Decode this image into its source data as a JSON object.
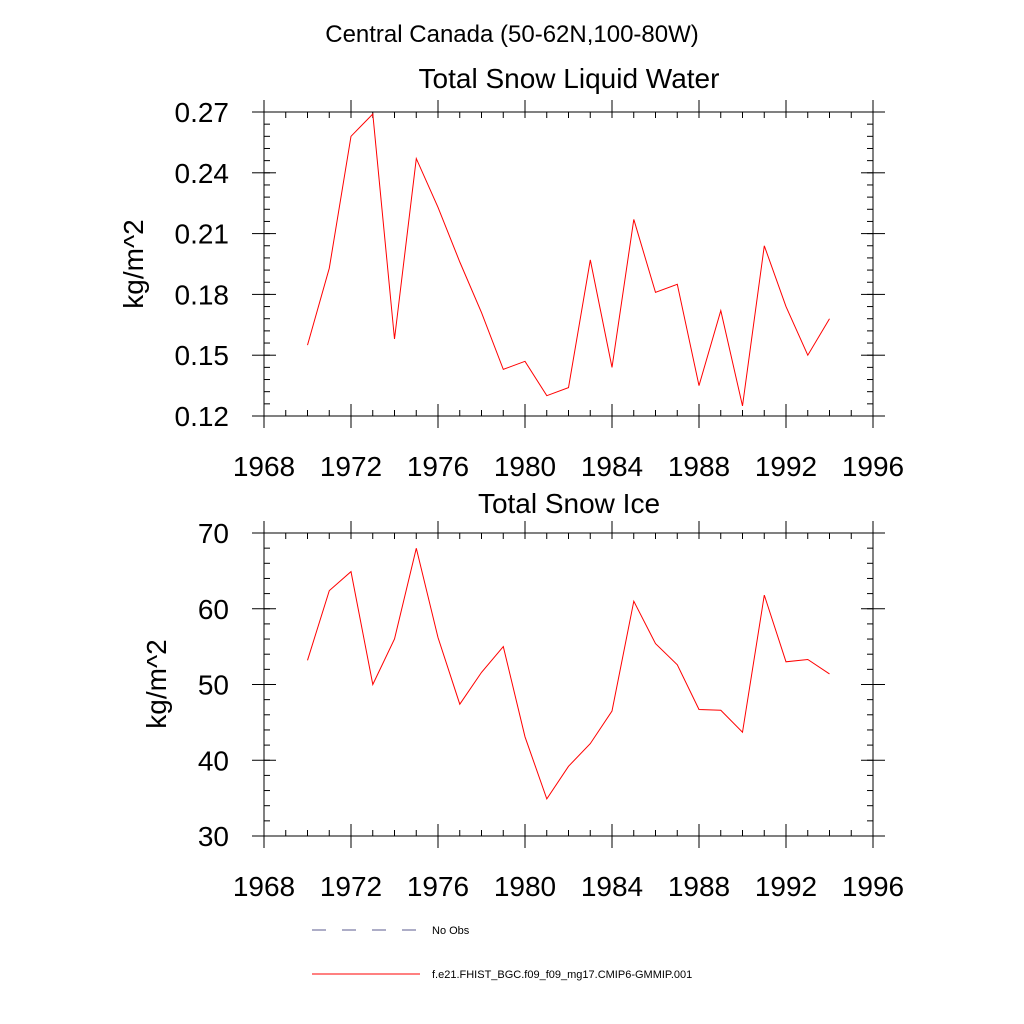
{
  "figure_title": "Central Canada (50-62N,100-80W)",
  "colors": {
    "model_line": "#ff0000",
    "obs_line": "#5b5b8f",
    "axis": "#000000"
  },
  "chart_data": [
    {
      "type": "line",
      "title": "Total Snow Liquid Water",
      "xlabel": "",
      "ylabel": "kg/m^2",
      "xlim": [
        1968,
        1996
      ],
      "ylim": [
        0.12,
        0.27
      ],
      "x_major_ticks": [
        1968,
        1972,
        1976,
        1980,
        1984,
        1988,
        1992,
        1996
      ],
      "x_tick_labels": [
        "1968",
        "1972",
        "1976",
        "1980",
        "1984",
        "1988",
        "1992",
        "1996"
      ],
      "y_major_ticks": [
        0.12,
        0.15,
        0.18,
        0.21,
        0.24,
        0.27
      ],
      "y_tick_labels": [
        "0.12",
        "0.15",
        "0.18",
        "0.21",
        "0.24",
        "0.27"
      ],
      "y_minor_step": 0.006,
      "x_minor_step": 1,
      "grid": false,
      "series": [
        {
          "name": "f.e21.FHIST_BGC.f09_f09_mg17.CMIP6-GMMIP.001",
          "color": "#ff0000",
          "x": [
            1970,
            1971,
            1972,
            1973,
            1974,
            1975,
            1976,
            1977,
            1978,
            1979,
            1980,
            1981,
            1982,
            1983,
            1984,
            1985,
            1986,
            1987,
            1988,
            1989,
            1990,
            1991,
            1992,
            1993,
            1994
          ],
          "values": [
            0.155,
            0.193,
            0.258,
            0.269,
            0.158,
            0.247,
            0.223,
            0.196,
            0.171,
            0.143,
            0.147,
            0.13,
            0.134,
            0.197,
            0.144,
            0.217,
            0.181,
            0.185,
            0.135,
            0.172,
            0.125,
            0.204,
            0.174,
            0.15,
            0.168
          ]
        }
      ]
    },
    {
      "type": "line",
      "title": "Total Snow Ice",
      "xlabel": "",
      "ylabel": "kg/m^2",
      "xlim": [
        1968,
        1996
      ],
      "ylim": [
        30,
        70
      ],
      "x_major_ticks": [
        1968,
        1972,
        1976,
        1980,
        1984,
        1988,
        1992,
        1996
      ],
      "x_tick_labels": [
        "1968",
        "1972",
        "1976",
        "1980",
        "1984",
        "1988",
        "1992",
        "1996"
      ],
      "y_major_ticks": [
        30,
        40,
        50,
        60,
        70
      ],
      "y_tick_labels": [
        "30",
        "40",
        "50",
        "60",
        "70"
      ],
      "y_minor_step": 2,
      "x_minor_step": 1,
      "grid": false,
      "series": [
        {
          "name": "f.e21.FHIST_BGC.f09_f09_mg17.CMIP6-GMMIP.001",
          "color": "#ff0000",
          "x": [
            1970,
            1971,
            1972,
            1973,
            1974,
            1975,
            1976,
            1977,
            1978,
            1979,
            1980,
            1981,
            1982,
            1983,
            1984,
            1985,
            1986,
            1987,
            1988,
            1989,
            1990,
            1991,
            1992,
            1993,
            1994
          ],
          "values": [
            53.2,
            62.4,
            64.9,
            50.0,
            56.0,
            68.0,
            56.2,
            47.4,
            51.6,
            55.0,
            43.1,
            34.9,
            39.2,
            42.2,
            46.5,
            61.0,
            55.4,
            52.6,
            46.7,
            46.6,
            43.7,
            61.8,
            53.0,
            53.3,
            51.4
          ]
        }
      ]
    }
  ],
  "legend": {
    "items": [
      {
        "label": "No Obs",
        "style": "dashed",
        "color": "#5b5b8f"
      },
      {
        "label": "f.e21.FHIST_BGC.f09_f09_mg17.CMIP6-GMMIP.001",
        "style": "solid",
        "color": "#ff0000"
      }
    ]
  }
}
